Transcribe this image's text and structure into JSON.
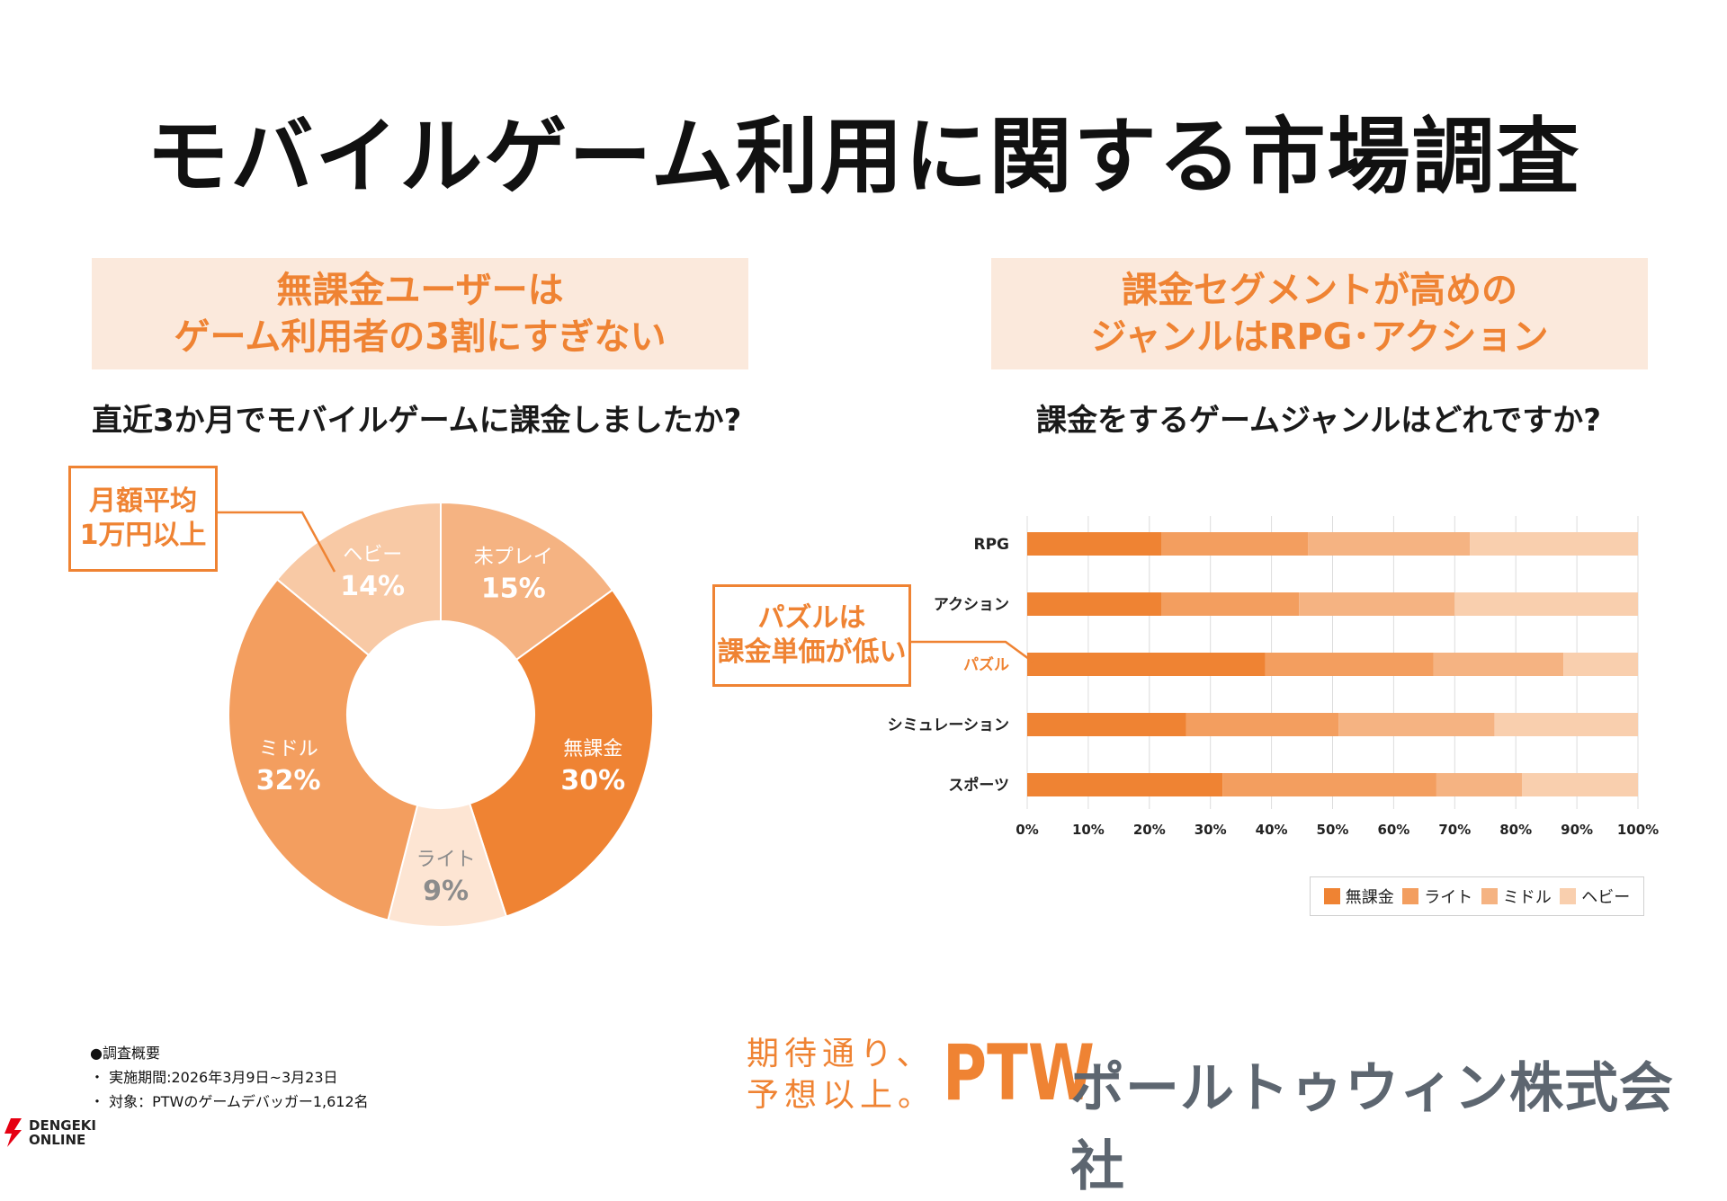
{
  "title": "モバイルゲーム利用に関する市場調査",
  "left_panel": {
    "banner_line1": "無課金ユーザーは",
    "banner_line2": "ゲーム利用者の3割にすぎない",
    "question": "直近3か月でモバイルゲームに課金しましたか?",
    "callout_line1": "月額平均",
    "callout_line2": "1万円以上"
  },
  "right_panel": {
    "banner_line1": "課金セグメントが高めの",
    "banner_line2": "ジャンルはRPG･アクション",
    "question": "課金をするゲームジャンルはどれですか?",
    "callout_line1": "パズルは",
    "callout_line2": "課金単価が低い"
  },
  "chart_data": [
    {
      "type": "pie",
      "labels": [
        "未プレイ",
        "無課金",
        "ライト",
        "ミドル",
        "ヘビー"
      ],
      "values": [
        15,
        30,
        9,
        32,
        14
      ],
      "value_labels": [
        "15%",
        "30%",
        "9%",
        "32%",
        "14%"
      ],
      "colors": [
        "#f5b382",
        "#ef8333",
        "#fde5d3",
        "#f39e5f",
        "#f8c9a5"
      ],
      "label_colors": [
        "#ffffff",
        "#ffffff",
        "#8c8c8c",
        "#ffffff",
        "#ffffff"
      ]
    },
    {
      "type": "bar",
      "orientation": "horizontal",
      "stacked": true,
      "categories": [
        "RPG",
        "アクション",
        "パズル",
        "シミュレーション",
        "スポーツ"
      ],
      "highlight_category": "パズル",
      "series": [
        {
          "name": "無課金",
          "values": [
            22,
            22,
            39,
            26,
            32
          ]
        },
        {
          "name": "ライト",
          "values": [
            24,
            22.5,
            27.5,
            25,
            35
          ]
        },
        {
          "name": "ミドル",
          "values": [
            26.5,
            25.5,
            21.3,
            25.5,
            14
          ]
        },
        {
          "name": "ヘビー",
          "values": [
            27.5,
            30,
            12.2,
            23.5,
            19
          ]
        }
      ],
      "series_colors": [
        "#ef8333",
        "#f39e5f",
        "#f5b382",
        "#f9cfae"
      ],
      "xlim": [
        0,
        100
      ],
      "x_ticks": [
        "0%",
        "10%",
        "20%",
        "30%",
        "40%",
        "50%",
        "60%",
        "70%",
        "80%",
        "90%",
        "100%"
      ],
      "grid": true,
      "legend": "bottom-right"
    }
  ],
  "footer": {
    "notes_heading": "●調査概要",
    "notes_period": "・ 実施期間:2026年3月9日~3月23日",
    "notes_target": "・ 対象：PTWのゲームデバッガー1,612名",
    "slogan_line1": "期待通り、",
    "slogan_line2": "予想以上。",
    "logo": "PTW",
    "company": "ポールトゥウィン株式会社",
    "watermark_line1": "DENGEKI",
    "watermark_line2": "ONLINE"
  }
}
